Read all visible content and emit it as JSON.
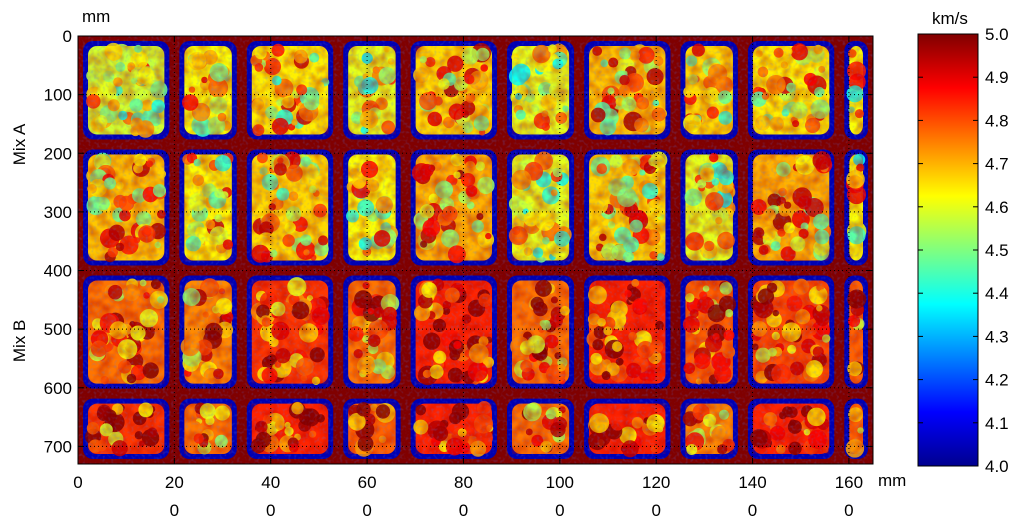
{
  "chart_data": {
    "type": "heatmap",
    "title": "",
    "x_axis": {
      "unit_label": "mm",
      "range": [
        0,
        1650
      ],
      "ticks": [
        {
          "value": 0,
          "line1": "0",
          "line2": ""
        },
        {
          "value": 200,
          "line1": "20",
          "line2": "0"
        },
        {
          "value": 400,
          "line1": "40",
          "line2": "0"
        },
        {
          "value": 600,
          "line1": "60",
          "line2": "0"
        },
        {
          "value": 800,
          "line1": "80",
          "line2": "0"
        },
        {
          "value": 1000,
          "line1": "100",
          "line2": "0"
        },
        {
          "value": 1200,
          "line1": "120",
          "line2": "0"
        },
        {
          "value": 1400,
          "line1": "140",
          "line2": "0"
        },
        {
          "value": 1600,
          "line1": "160",
          "line2": "0"
        }
      ]
    },
    "y_axis": {
      "unit_label": "mm",
      "range": [
        0,
        730
      ],
      "inverted": true,
      "ticks": [
        {
          "value": 0,
          "label": "0"
        },
        {
          "value": 100,
          "label": "100"
        },
        {
          "value": 200,
          "label": "200"
        },
        {
          "value": 300,
          "label": "300"
        },
        {
          "value": 400,
          "label": "400"
        },
        {
          "value": 500,
          "label": "500"
        },
        {
          "value": 600,
          "label": "600"
        },
        {
          "value": 700,
          "label": "700"
        }
      ]
    },
    "row_groups": [
      {
        "label": "Mix A",
        "y_center": 185
      },
      {
        "label": "Mix B",
        "y_center": 520
      }
    ],
    "grid": true,
    "colorbar": {
      "unit_label": "km/s",
      "min": 4.0,
      "max": 5.0,
      "colormap": "jet",
      "ticks": [
        "4.0",
        "4.1",
        "4.2",
        "4.3",
        "4.4",
        "4.5",
        "4.6",
        "4.7",
        "4.8",
        "4.9",
        "5.0"
      ]
    },
    "layout_grid": {
      "columns_mm": [
        [
          0,
          200
        ],
        [
          200,
          340
        ],
        [
          340,
          540
        ],
        [
          540,
          680
        ],
        [
          680,
          880
        ],
        [
          880,
          1040
        ],
        [
          1040,
          1240
        ],
        [
          1240,
          1380
        ],
        [
          1380,
          1580
        ],
        [
          1580,
          1650
        ]
      ],
      "rows_mm": [
        [
          0,
          185
        ],
        [
          185,
          400
        ],
        [
          400,
          610
        ],
        [
          610,
          730
        ]
      ]
    },
    "specimens": [
      {
        "row": 0,
        "col": 0,
        "mean_velocity": 4.58
      },
      {
        "row": 0,
        "col": 1,
        "mean_velocity": 4.62
      },
      {
        "row": 0,
        "col": 2,
        "mean_velocity": 4.64
      },
      {
        "row": 0,
        "col": 3,
        "mean_velocity": 4.6
      },
      {
        "row": 0,
        "col": 4,
        "mean_velocity": 4.66
      },
      {
        "row": 0,
        "col": 5,
        "mean_velocity": 4.6
      },
      {
        "row": 0,
        "col": 6,
        "mean_velocity": 4.68
      },
      {
        "row": 0,
        "col": 7,
        "mean_velocity": 4.66
      },
      {
        "row": 0,
        "col": 8,
        "mean_velocity": 4.64
      },
      {
        "row": 0,
        "col": 9,
        "mean_velocity": 4.62
      },
      {
        "row": 1,
        "col": 0,
        "mean_velocity": 4.68
      },
      {
        "row": 1,
        "col": 1,
        "mean_velocity": 4.63
      },
      {
        "row": 1,
        "col": 2,
        "mean_velocity": 4.66
      },
      {
        "row": 1,
        "col": 3,
        "mean_velocity": 4.62
      },
      {
        "row": 1,
        "col": 4,
        "mean_velocity": 4.7
      },
      {
        "row": 1,
        "col": 5,
        "mean_velocity": 4.6
      },
      {
        "row": 1,
        "col": 6,
        "mean_velocity": 4.66
      },
      {
        "row": 1,
        "col": 7,
        "mean_velocity": 4.6
      },
      {
        "row": 1,
        "col": 8,
        "mean_velocity": 4.7
      },
      {
        "row": 1,
        "col": 9,
        "mean_velocity": 4.62
      },
      {
        "row": 2,
        "col": 0,
        "mean_velocity": 4.76
      },
      {
        "row": 2,
        "col": 1,
        "mean_velocity": 4.74
      },
      {
        "row": 2,
        "col": 2,
        "mean_velocity": 4.82
      },
      {
        "row": 2,
        "col": 3,
        "mean_velocity": 4.76
      },
      {
        "row": 2,
        "col": 4,
        "mean_velocity": 4.84
      },
      {
        "row": 2,
        "col": 5,
        "mean_velocity": 4.76
      },
      {
        "row": 2,
        "col": 6,
        "mean_velocity": 4.84
      },
      {
        "row": 2,
        "col": 7,
        "mean_velocity": 4.78
      },
      {
        "row": 2,
        "col": 8,
        "mean_velocity": 4.8
      },
      {
        "row": 2,
        "col": 9,
        "mean_velocity": 4.78
      },
      {
        "row": 3,
        "col": 0,
        "mean_velocity": 4.82
      },
      {
        "row": 3,
        "col": 1,
        "mean_velocity": 4.76
      },
      {
        "row": 3,
        "col": 2,
        "mean_velocity": 4.84
      },
      {
        "row": 3,
        "col": 3,
        "mean_velocity": 4.78
      },
      {
        "row": 3,
        "col": 4,
        "mean_velocity": 4.84
      },
      {
        "row": 3,
        "col": 5,
        "mean_velocity": 4.76
      },
      {
        "row": 3,
        "col": 6,
        "mean_velocity": 4.84
      },
      {
        "row": 3,
        "col": 7,
        "mean_velocity": 4.74
      },
      {
        "row": 3,
        "col": 8,
        "mean_velocity": 4.84
      },
      {
        "row": 3,
        "col": 9,
        "mean_velocity": 4.78
      }
    ],
    "seam_velocity": 5.0,
    "edge_velocity": 4.05
  }
}
